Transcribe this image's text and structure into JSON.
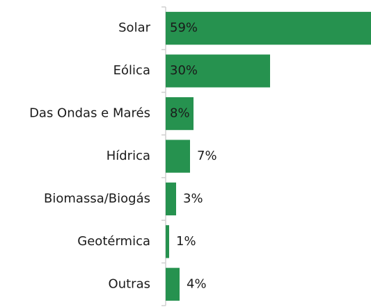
{
  "chart_data": {
    "type": "bar",
    "orientation": "horizontal",
    "categories": [
      "Solar",
      "Eólica",
      "Das Ondas e Marés",
      "Hídrica",
      "Biomassa/Biogás",
      "Geotérmica",
      "Outras"
    ],
    "values": [
      59,
      30,
      8,
      7,
      3,
      1,
      4
    ],
    "value_labels": [
      "59%",
      "30%",
      "8%",
      "7%",
      "3%",
      "1%",
      "4%"
    ],
    "color": "#26924f",
    "xlim": [
      0,
      59
    ]
  }
}
